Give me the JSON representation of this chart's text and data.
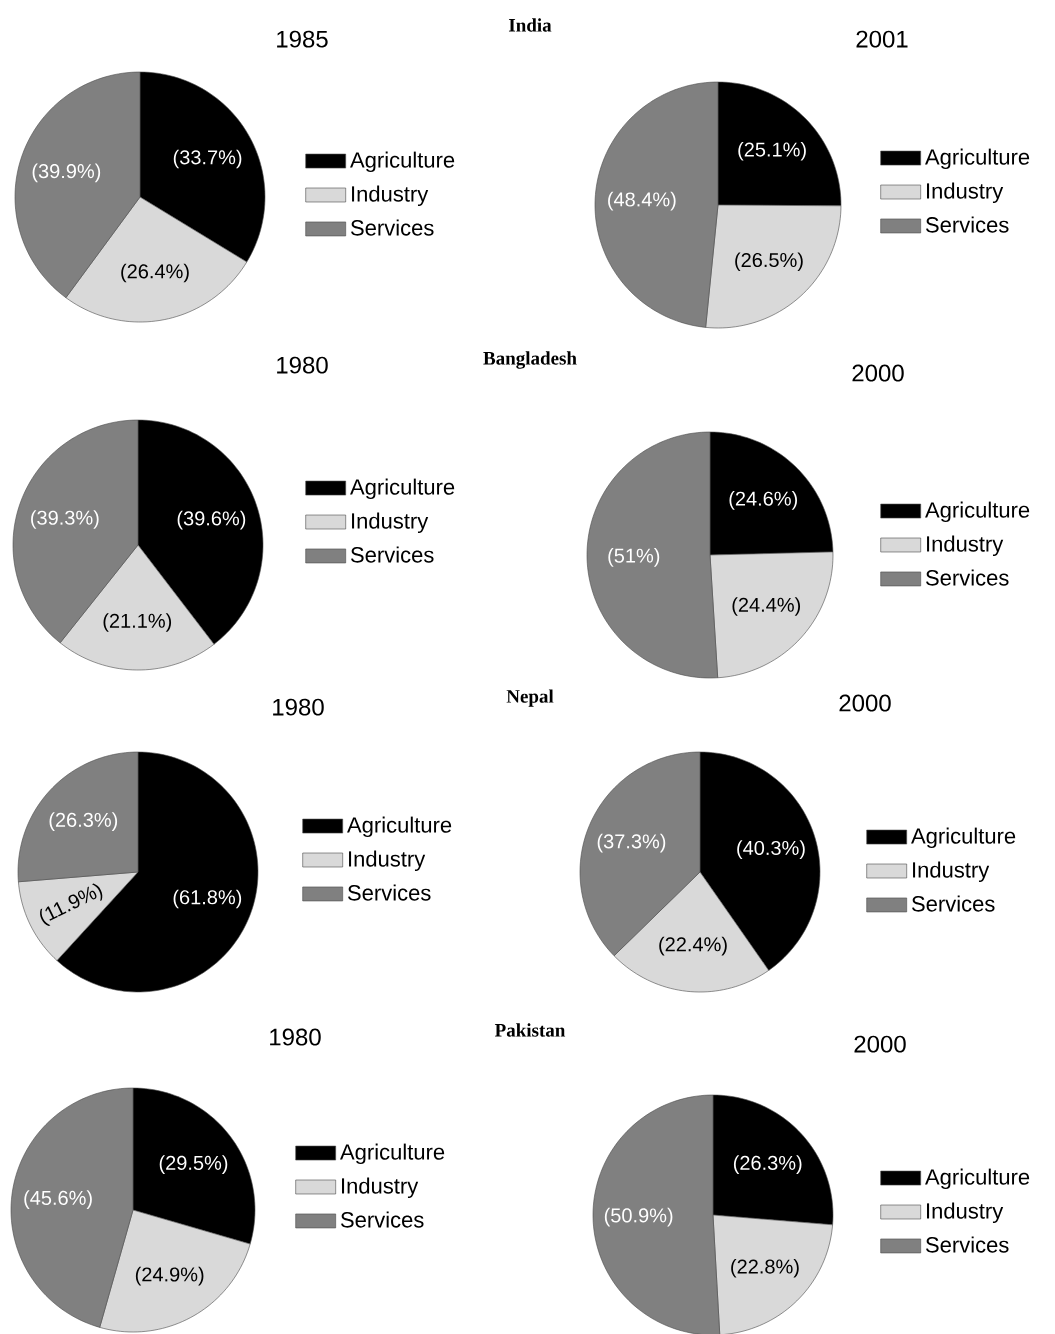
{
  "chart_data": [
    {
      "type": "pie",
      "title": "1985",
      "annotations": [
        "India"
      ],
      "categories": [
        "Agriculture",
        "Industry",
        "Services"
      ],
      "values": [
        33.7,
        26.4,
        39.9
      ],
      "colors": [
        "#000000",
        "#d9d9d9",
        "#808080"
      ],
      "value_labels": [
        "(33.7%)",
        "(26.4%)",
        "(39.9%)"
      ],
      "legend": "right"
    },
    {
      "type": "pie",
      "title": "2001",
      "categories": [
        "Agriculture",
        "Industry",
        "Services"
      ],
      "values": [
        25.1,
        26.5,
        48.4
      ],
      "colors": [
        "#000000",
        "#d9d9d9",
        "#808080"
      ],
      "value_labels": [
        "(25.1%)",
        "(26.5%)",
        "(48.4%)"
      ],
      "legend": "right"
    },
    {
      "type": "pie",
      "title": "1980",
      "annotations": [
        "Bangladesh"
      ],
      "categories": [
        "Agriculture",
        "Industry",
        "Services"
      ],
      "values": [
        39.6,
        21.1,
        39.3
      ],
      "colors": [
        "#000000",
        "#d9d9d9",
        "#808080"
      ],
      "value_labels": [
        "(39.6%)",
        "(21.1%)",
        "(39.3%)"
      ],
      "legend": "right"
    },
    {
      "type": "pie",
      "title": "2000",
      "categories": [
        "Agriculture",
        "Industry",
        "Services"
      ],
      "values": [
        24.6,
        24.4,
        51
      ],
      "colors": [
        "#000000",
        "#d9d9d9",
        "#808080"
      ],
      "value_labels": [
        "(24.6%)",
        "(24.4%)",
        "(51%)"
      ],
      "legend": "right"
    },
    {
      "type": "pie",
      "title": "1980",
      "annotations": [
        "Nepal"
      ],
      "categories": [
        "Agriculture",
        "Industry",
        "Services"
      ],
      "values": [
        61.8,
        11.9,
        26.3
      ],
      "colors": [
        "#000000",
        "#d9d9d9",
        "#808080"
      ],
      "value_labels": [
        "(61.8%)",
        "(11.9%)",
        "(26.3%)"
      ],
      "legend": "right"
    },
    {
      "type": "pie",
      "title": "2000",
      "categories": [
        "Agriculture",
        "Industry",
        "Services"
      ],
      "values": [
        40.3,
        22.4,
        37.3
      ],
      "colors": [
        "#000000",
        "#d9d9d9",
        "#808080"
      ],
      "value_labels": [
        "(40.3%)",
        "(22.4%)",
        "(37.3%)"
      ],
      "legend": "right"
    },
    {
      "type": "pie",
      "title": "1980",
      "annotations": [
        "Pakistan"
      ],
      "categories": [
        "Agriculture",
        "Industry",
        "Services"
      ],
      "values": [
        29.5,
        24.9,
        45.6
      ],
      "colors": [
        "#000000",
        "#d9d9d9",
        "#808080"
      ],
      "value_labels": [
        "(29.5%)",
        "(24.9%)",
        "(45.6%)"
      ],
      "legend": "right"
    },
    {
      "type": "pie",
      "title": "2000",
      "categories": [
        "Agriculture",
        "Industry",
        "Services"
      ],
      "values": [
        26.3,
        22.8,
        50.9
      ],
      "colors": [
        "#000000",
        "#d9d9d9",
        "#808080"
      ],
      "value_labels": [
        "(26.3%)",
        "(22.8%)",
        "(50.9%)"
      ],
      "legend": "right"
    }
  ]
}
